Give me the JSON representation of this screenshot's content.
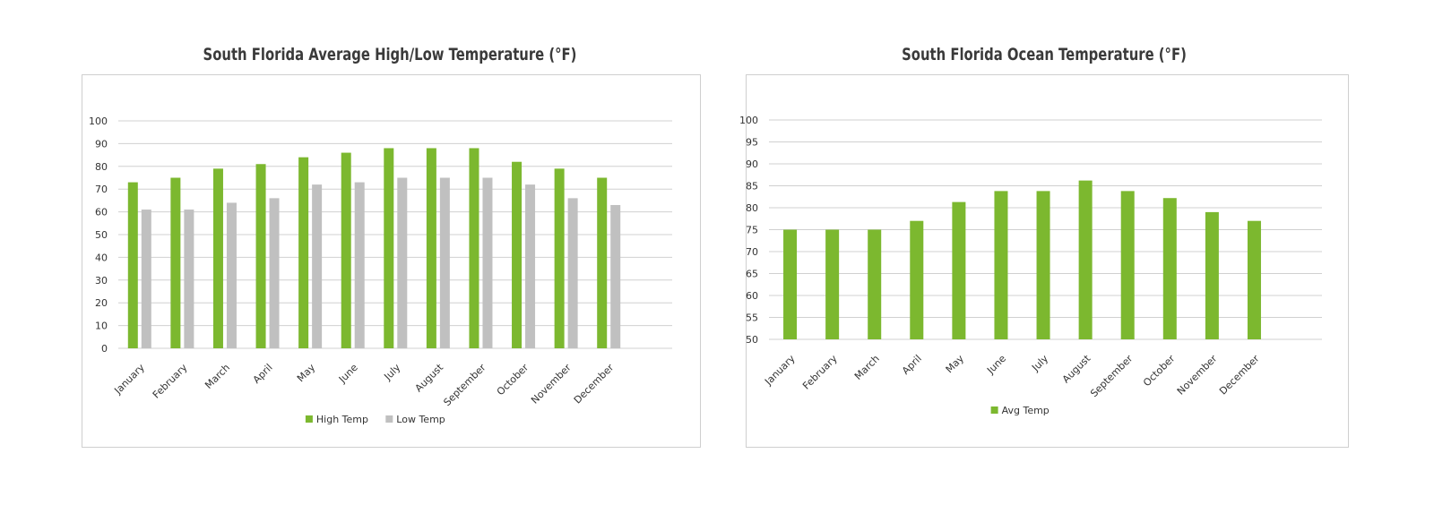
{
  "chart_data": [
    {
      "type": "bar",
      "title": "South Florida Average High/Low Temperature (°F)",
      "categories": [
        "January",
        "February",
        "March",
        "April",
        "May",
        "June",
        "July",
        "August",
        "September",
        "October",
        "November",
        "December"
      ],
      "series": [
        {
          "name": "High Temp",
          "color": "#7cb82f",
          "values": [
            73,
            75,
            79,
            81,
            84,
            86,
            88,
            88,
            88,
            82,
            79,
            75
          ]
        },
        {
          "name": "Low Temp",
          "color": "#c0c0c0",
          "values": [
            61,
            61,
            64,
            66,
            72,
            73,
            75,
            75,
            75,
            72,
            66,
            63
          ]
        }
      ],
      "ylim": [
        0,
        100
      ],
      "yticks": [
        0,
        10,
        20,
        30,
        40,
        50,
        60,
        70,
        80,
        90,
        100
      ],
      "grid": true,
      "legend": "bottom"
    },
    {
      "type": "bar",
      "title": "South Florida Ocean Temperature (°F)",
      "categories": [
        "January",
        "February",
        "March",
        "April",
        "May",
        "June",
        "July",
        "August",
        "September",
        "October",
        "November",
        "December"
      ],
      "series": [
        {
          "name": "Avg Temp",
          "color": "#7cb82f",
          "values": [
            75,
            75,
            75,
            77,
            81.3,
            83.8,
            83.8,
            86.2,
            83.8,
            82.2,
            79,
            77
          ]
        }
      ],
      "ylim": [
        50,
        100
      ],
      "yticks": [
        50,
        55,
        60,
        65,
        70,
        75,
        80,
        85,
        90,
        95,
        100
      ],
      "grid": true,
      "legend": "bottom"
    }
  ]
}
